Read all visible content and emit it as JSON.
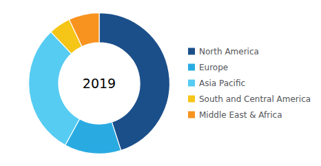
{
  "chart_data": {
    "type": "donut",
    "categories": [
      "North America",
      "Europe",
      "Asia Pacific",
      "South and Central America",
      "Middle East & Africa"
    ],
    "values": [
      45,
      13,
      30,
      5,
      7
    ],
    "colors": [
      "#1b4f8a",
      "#29abe2",
      "#56ccf2",
      "#f5c518",
      "#f7931e"
    ],
    "annotation": "2019",
    "legend": "right"
  }
}
